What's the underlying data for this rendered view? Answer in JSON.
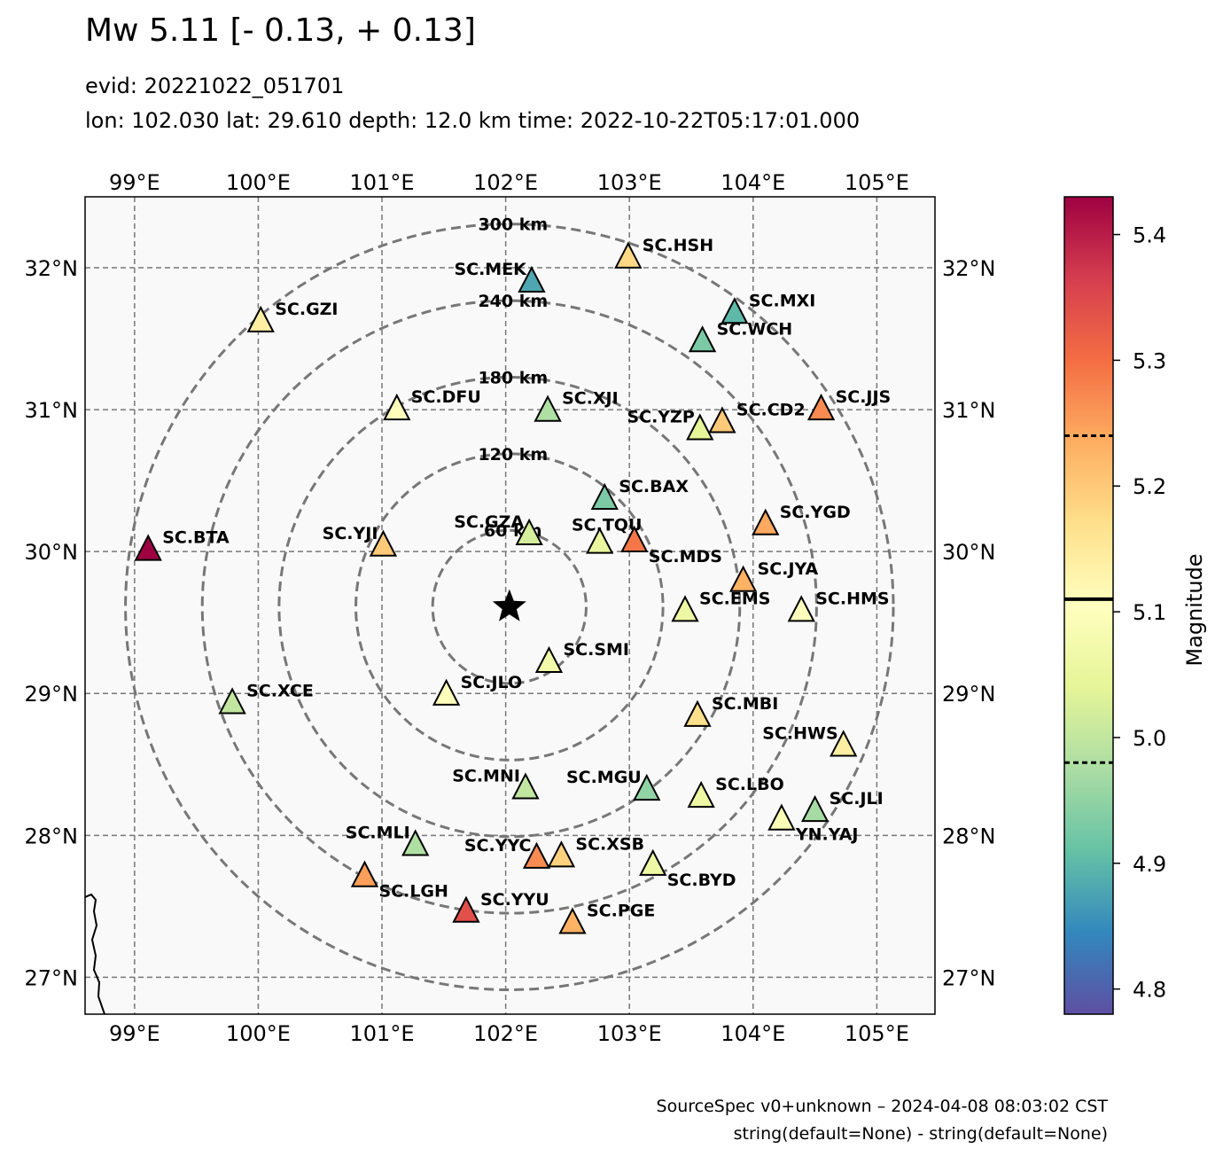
{
  "title": "Mw 5.11 [- 0.13, + 0.13]",
  "subtitle_evid": "evid: 20221022_051701",
  "subtitle_event": "lon: 102.030 lat: 29.610 depth: 12.0 km time: 2022-10-22T05:17:01.000",
  "footer_line1": "SourceSpec v0+unknown – 2024-04-08 08:03:02 CST",
  "footer_line2": "string(default=None) - string(default=None)",
  "chart_data": {
    "type": "scatter",
    "map_extent": {
      "lon": [
        98.6,
        105.47
      ],
      "lat": [
        26.74,
        32.5
      ]
    },
    "epicenter": {
      "lon": 102.03,
      "lat": 29.61,
      "symbol": "star"
    },
    "lon_ticks": [
      99,
      100,
      101,
      102,
      103,
      104,
      105
    ],
    "lat_ticks": [
      27,
      28,
      29,
      30,
      31,
      32
    ],
    "lon_tick_labels": [
      "99°E",
      "100°E",
      "101°E",
      "102°E",
      "103°E",
      "104°E",
      "105°E"
    ],
    "lat_tick_labels": [
      "27°N",
      "28°N",
      "29°N",
      "30°N",
      "31°N",
      "32°N"
    ],
    "grid": true,
    "distance_rings": [
      {
        "km": 60,
        "label": "60 km"
      },
      {
        "km": 120,
        "label": "120 km"
      },
      {
        "km": 180,
        "label": "180 km"
      },
      {
        "km": 240,
        "label": "240 km"
      },
      {
        "km": 300,
        "label": "300 km"
      }
    ],
    "colorbar": {
      "label": "Magnitude",
      "range": [
        4.78,
        5.43
      ],
      "ticks": [
        4.8,
        4.9,
        5.0,
        5.1,
        5.2,
        5.3,
        5.4
      ],
      "tick_labels": [
        "4.8",
        "4.9",
        "5.0",
        "5.1",
        "5.2",
        "5.3",
        "5.4"
      ],
      "mean": 5.11,
      "lower": 4.98,
      "upper": 5.24,
      "colormap": "Spectral_r"
    },
    "stations": [
      {
        "code": "SC.BTA",
        "lon": 99.11,
        "lat": 30.01,
        "mag": 5.43,
        "label_side": "right"
      },
      {
        "code": "SC.GZI",
        "lon": 100.02,
        "lat": 31.62,
        "mag": 5.14,
        "label_side": "right"
      },
      {
        "code": "SC.DFU",
        "lon": 101.12,
        "lat": 31.0,
        "mag": 5.11,
        "label_side": "right"
      },
      {
        "code": "SC.MEK",
        "lon": 102.21,
        "lat": 31.9,
        "mag": 4.88,
        "label_side": "left"
      },
      {
        "code": "SC.HSH",
        "lon": 102.99,
        "lat": 32.07,
        "mag": 5.18,
        "label_side": "right"
      },
      {
        "code": "SC.MXI",
        "lon": 103.85,
        "lat": 31.68,
        "mag": 4.9,
        "label_side": "right"
      },
      {
        "code": "SC.WCH",
        "lon": 103.59,
        "lat": 31.48,
        "mag": 4.93,
        "label_side": "right"
      },
      {
        "code": "SC.XJI",
        "lon": 102.34,
        "lat": 30.99,
        "mag": 4.98,
        "label_side": "right"
      },
      {
        "code": "SC.JJS",
        "lon": 104.55,
        "lat": 31.0,
        "mag": 5.27,
        "label_side": "right"
      },
      {
        "code": "SC.YZP",
        "lon": 103.57,
        "lat": 30.86,
        "mag": 5.04,
        "label_side": "left"
      },
      {
        "code": "SC.CD2",
        "lon": 103.75,
        "lat": 30.91,
        "mag": 5.2,
        "label_side": "right"
      },
      {
        "code": "SC.BAX",
        "lon": 102.8,
        "lat": 30.37,
        "mag": 4.93,
        "label_side": "right"
      },
      {
        "code": "SC.YGD",
        "lon": 104.1,
        "lat": 30.19,
        "mag": 5.24,
        "label_side": "right"
      },
      {
        "code": "SC.YJI",
        "lon": 101.01,
        "lat": 30.04,
        "mag": 5.2,
        "label_side": "left"
      },
      {
        "code": "SC.GZA",
        "lon": 102.19,
        "lat": 30.12,
        "mag": 5.02,
        "label_side": "left"
      },
      {
        "code": "SC.TQU",
        "lon": 102.76,
        "lat": 30.06,
        "mag": 5.05,
        "label_side": "above"
      },
      {
        "code": "SC.MDS",
        "lon": 103.04,
        "lat": 30.07,
        "mag": 5.29,
        "label_side": "below-right"
      },
      {
        "code": "SC.JYA",
        "lon": 103.92,
        "lat": 29.79,
        "mag": 5.23,
        "label_side": "right"
      },
      {
        "code": "SC.EMS",
        "lon": 103.45,
        "lat": 29.58,
        "mag": 5.06,
        "label_side": "right"
      },
      {
        "code": "SC.HMS",
        "lon": 104.39,
        "lat": 29.58,
        "mag": 5.1,
        "label_side": "right"
      },
      {
        "code": "SC.SMI",
        "lon": 102.35,
        "lat": 29.22,
        "mag": 5.07,
        "label_side": "right"
      },
      {
        "code": "SC.JLO",
        "lon": 101.52,
        "lat": 28.99,
        "mag": 5.1,
        "label_side": "right"
      },
      {
        "code": "SC.XCE",
        "lon": 99.79,
        "lat": 28.93,
        "mag": 5.0,
        "label_side": "right"
      },
      {
        "code": "SC.MBI",
        "lon": 103.55,
        "lat": 28.84,
        "mag": 5.17,
        "label_side": "right"
      },
      {
        "code": "SC.HWS",
        "lon": 104.73,
        "lat": 28.63,
        "mag": 5.14,
        "label_side": "left"
      },
      {
        "code": "SC.MNI",
        "lon": 102.16,
        "lat": 28.33,
        "mag": 5.0,
        "label_side": "left"
      },
      {
        "code": "SC.MGU",
        "lon": 103.14,
        "lat": 28.32,
        "mag": 4.95,
        "label_side": "left"
      },
      {
        "code": "SC.LBO",
        "lon": 103.58,
        "lat": 28.27,
        "mag": 5.06,
        "label_side": "right"
      },
      {
        "code": "SC.JLI",
        "lon": 104.5,
        "lat": 28.17,
        "mag": 4.97,
        "label_side": "right"
      },
      {
        "code": "YN.YAJ",
        "lon": 104.23,
        "lat": 28.11,
        "mag": 5.09,
        "label_side": "below-right"
      },
      {
        "code": "SC.MLI",
        "lon": 101.27,
        "lat": 27.93,
        "mag": 4.98,
        "label_side": "left"
      },
      {
        "code": "SC.YYC",
        "lon": 102.25,
        "lat": 27.84,
        "mag": 5.27,
        "label_side": "left"
      },
      {
        "code": "SC.XSB",
        "lon": 102.45,
        "lat": 27.85,
        "mag": 5.19,
        "label_side": "right"
      },
      {
        "code": "SC.BYD",
        "lon": 103.19,
        "lat": 27.79,
        "mag": 5.06,
        "label_side": "below-right"
      },
      {
        "code": "SC.LGH",
        "lon": 100.86,
        "lat": 27.71,
        "mag": 5.25,
        "label_side": "below-right"
      },
      {
        "code": "SC.YYU",
        "lon": 101.68,
        "lat": 27.46,
        "mag": 5.34,
        "label_side": "right"
      },
      {
        "code": "SC.PGE",
        "lon": 102.54,
        "lat": 27.38,
        "mag": 5.23,
        "label_side": "right"
      }
    ]
  }
}
